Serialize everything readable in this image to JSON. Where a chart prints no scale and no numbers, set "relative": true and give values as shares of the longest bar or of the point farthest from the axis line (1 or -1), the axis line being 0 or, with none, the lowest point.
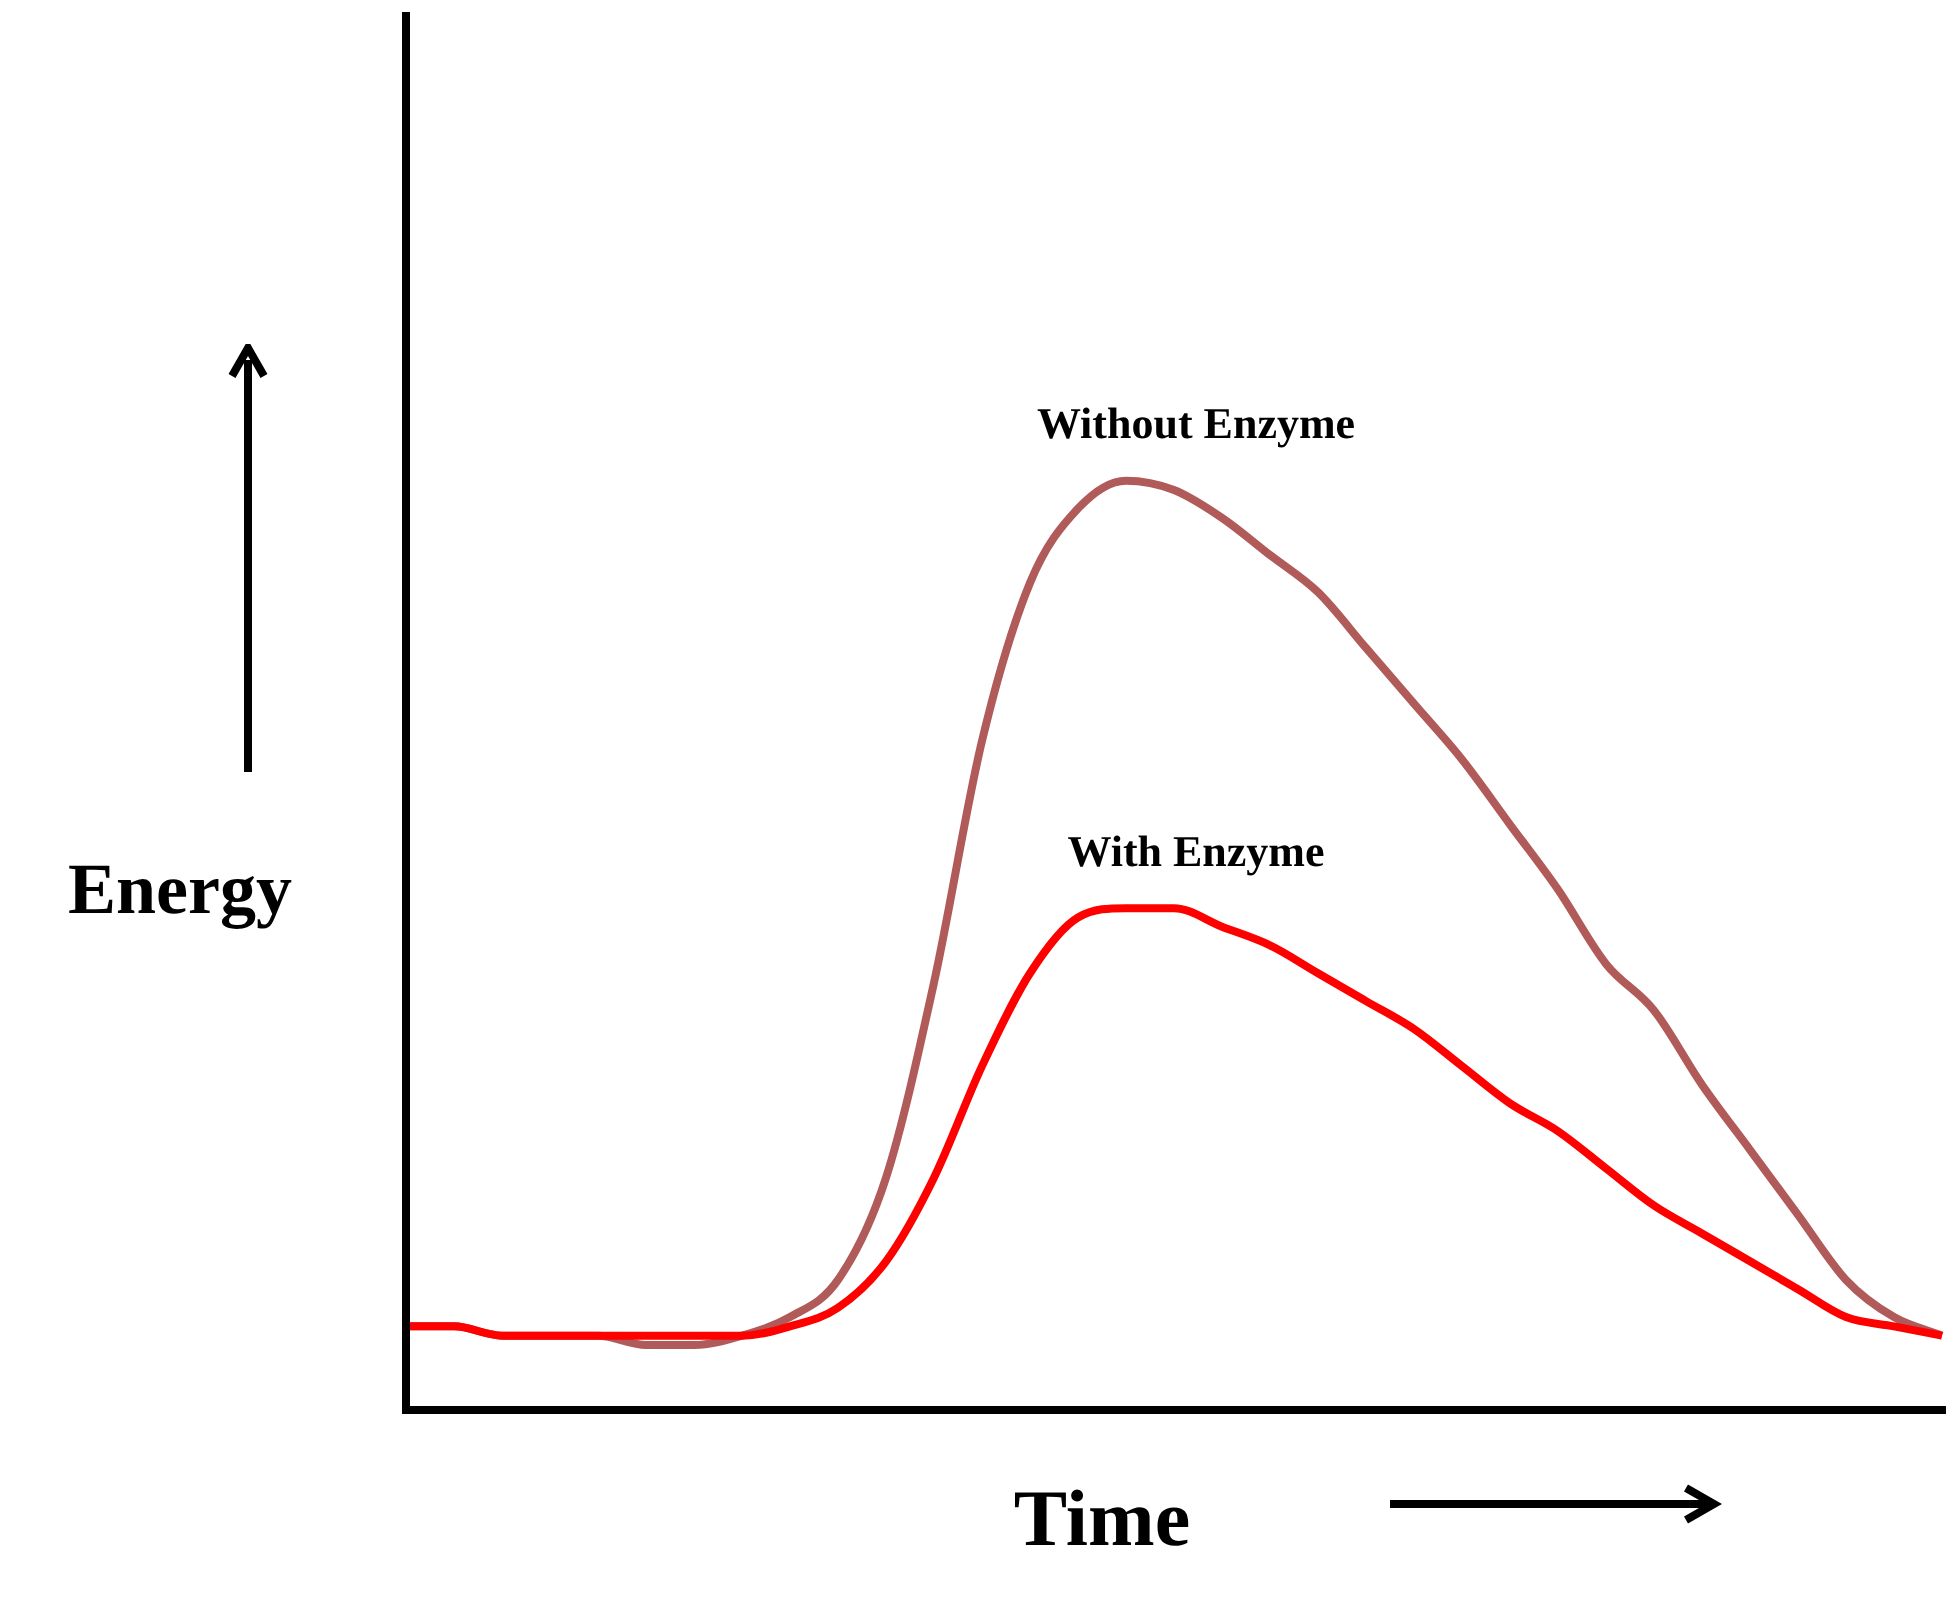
{
  "chart_data": {
    "type": "line",
    "relative": true,
    "xlabel": "Time",
    "ylabel": "Energy",
    "marker": "none",
    "categories": [
      null,
      null,
      null,
      null,
      null,
      null,
      null,
      null,
      null,
      null,
      null,
      null,
      null,
      null,
      null,
      null,
      null,
      null,
      null,
      null,
      null,
      null,
      null,
      null,
      null,
      null,
      null,
      null,
      null,
      null,
      null,
      null,
      null
    ],
    "series": [
      {
        "name": "Without Enzyme",
        "color": "#b05a5a",
        "values": [
          0.09,
          0.09,
          0.08,
          0.08,
          0.08,
          0.07,
          0.07,
          0.08,
          0.1,
          0.14,
          0.25,
          0.46,
          0.72,
          0.89,
          0.97,
          1,
          0.99,
          0.96,
          0.92,
          0.88,
          0.82,
          0.76,
          0.7,
          0.63,
          0.56,
          0.48,
          0.43,
          0.35,
          0.28,
          0.21,
          0.14,
          0.1,
          0.08
        ]
      },
      {
        "name": "With Enzyme",
        "color": "#ff0000",
        "values": [
          0.09,
          0.09,
          0.08,
          0.08,
          0.08,
          0.08,
          0.08,
          0.08,
          0.09,
          0.11,
          0.16,
          0.25,
          0.37,
          0.47,
          0.53,
          0.54,
          0.54,
          0.52,
          0.5,
          0.47,
          0.44,
          0.41,
          0.37,
          0.33,
          0.3,
          0.26,
          0.22,
          0.19,
          0.16,
          0.13,
          0.1,
          0.09,
          0.08
        ]
      }
    ]
  }
}
